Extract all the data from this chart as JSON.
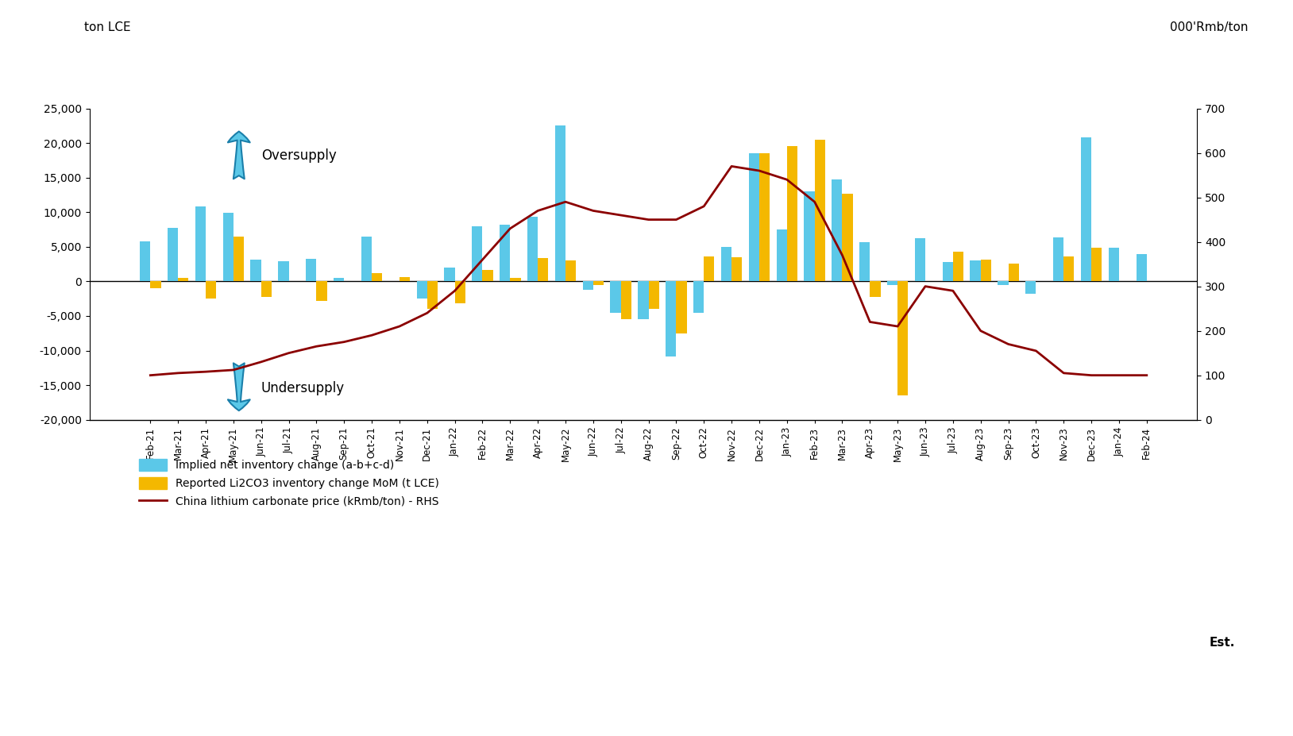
{
  "categories": [
    "Feb-21",
    "Mar-21",
    "Apr-21",
    "May-21",
    "Jun-21",
    "Jul-21",
    "Aug-21",
    "Sep-21",
    "Oct-21",
    "Nov-21",
    "Dec-21",
    "Jan-22",
    "Feb-22",
    "Mar-22",
    "Apr-22",
    "May-22",
    "Jun-22",
    "Jul-22",
    "Aug-22",
    "Sep-22",
    "Oct-22",
    "Nov-22",
    "Dec-22",
    "Jan-23",
    "Feb-23",
    "Mar-23",
    "Apr-23",
    "May-23",
    "Jun-23",
    "Jul-23",
    "Aug-23",
    "Sep-23",
    "Oct-23",
    "Nov-23",
    "Dec-23",
    "Jan-24",
    "Feb-24"
  ],
  "blue_bars": [
    5800,
    7700,
    10800,
    9900,
    3100,
    2900,
    3300,
    500,
    6500,
    0,
    -2500,
    2000,
    8000,
    8200,
    9400,
    22500,
    -1200,
    -4500,
    -5500,
    -10800,
    -4500,
    5000,
    18500,
    7500,
    13000,
    14700,
    5700,
    -500,
    6200,
    2800,
    3000,
    -500,
    -1800,
    6400,
    20800,
    4900,
    3900
  ],
  "yellow_bars": [
    -1000,
    500,
    -2500,
    6500,
    -2300,
    null,
    -2800,
    null,
    1200,
    600,
    -4000,
    -3200,
    1700,
    500,
    3400,
    3000,
    -500,
    -5500,
    -4000,
    -7500,
    3600,
    3500,
    18500,
    19600,
    20500,
    12700,
    -2200,
    -16500,
    null,
    4300,
    3100,
    2600,
    null,
    3600,
    4900,
    null,
    null
  ],
  "rhs_line": [
    100,
    105,
    108,
    112,
    130,
    150,
    165,
    175,
    190,
    210,
    240,
    290,
    360,
    430,
    470,
    490,
    470,
    460,
    450,
    450,
    480,
    570,
    560,
    540,
    490,
    370,
    220,
    210,
    300,
    290,
    200,
    170,
    155,
    105,
    100,
    100,
    100
  ],
  "bar_width": 0.38,
  "ylim_left": [
    -20000,
    25000
  ],
  "ylim_right": [
    0,
    700
  ],
  "yticks_left": [
    -20000,
    -15000,
    -10000,
    -5000,
    0,
    5000,
    10000,
    15000,
    20000,
    25000
  ],
  "yticks_right": [
    0,
    100,
    200,
    300,
    400,
    500,
    600,
    700
  ],
  "blue_color": "#5BC8E8",
  "yellow_color": "#F4B800",
  "line_color": "#8B0000",
  "title_left": "ton LCE",
  "title_right": "000'Rmb/ton",
  "oversupply_label": "Oversupply",
  "undersupply_label": "Undersupply",
  "legend_blue": "Implied net inventory change (a-b+c-d)",
  "legend_yellow": "Reported Li2CO3 inventory change MoM (t LCE)",
  "legend_line": "China lithium carbonate price (kRmb/ton) - RHS",
  "est_label": "Est.",
  "background_color": "#FFFFFF"
}
